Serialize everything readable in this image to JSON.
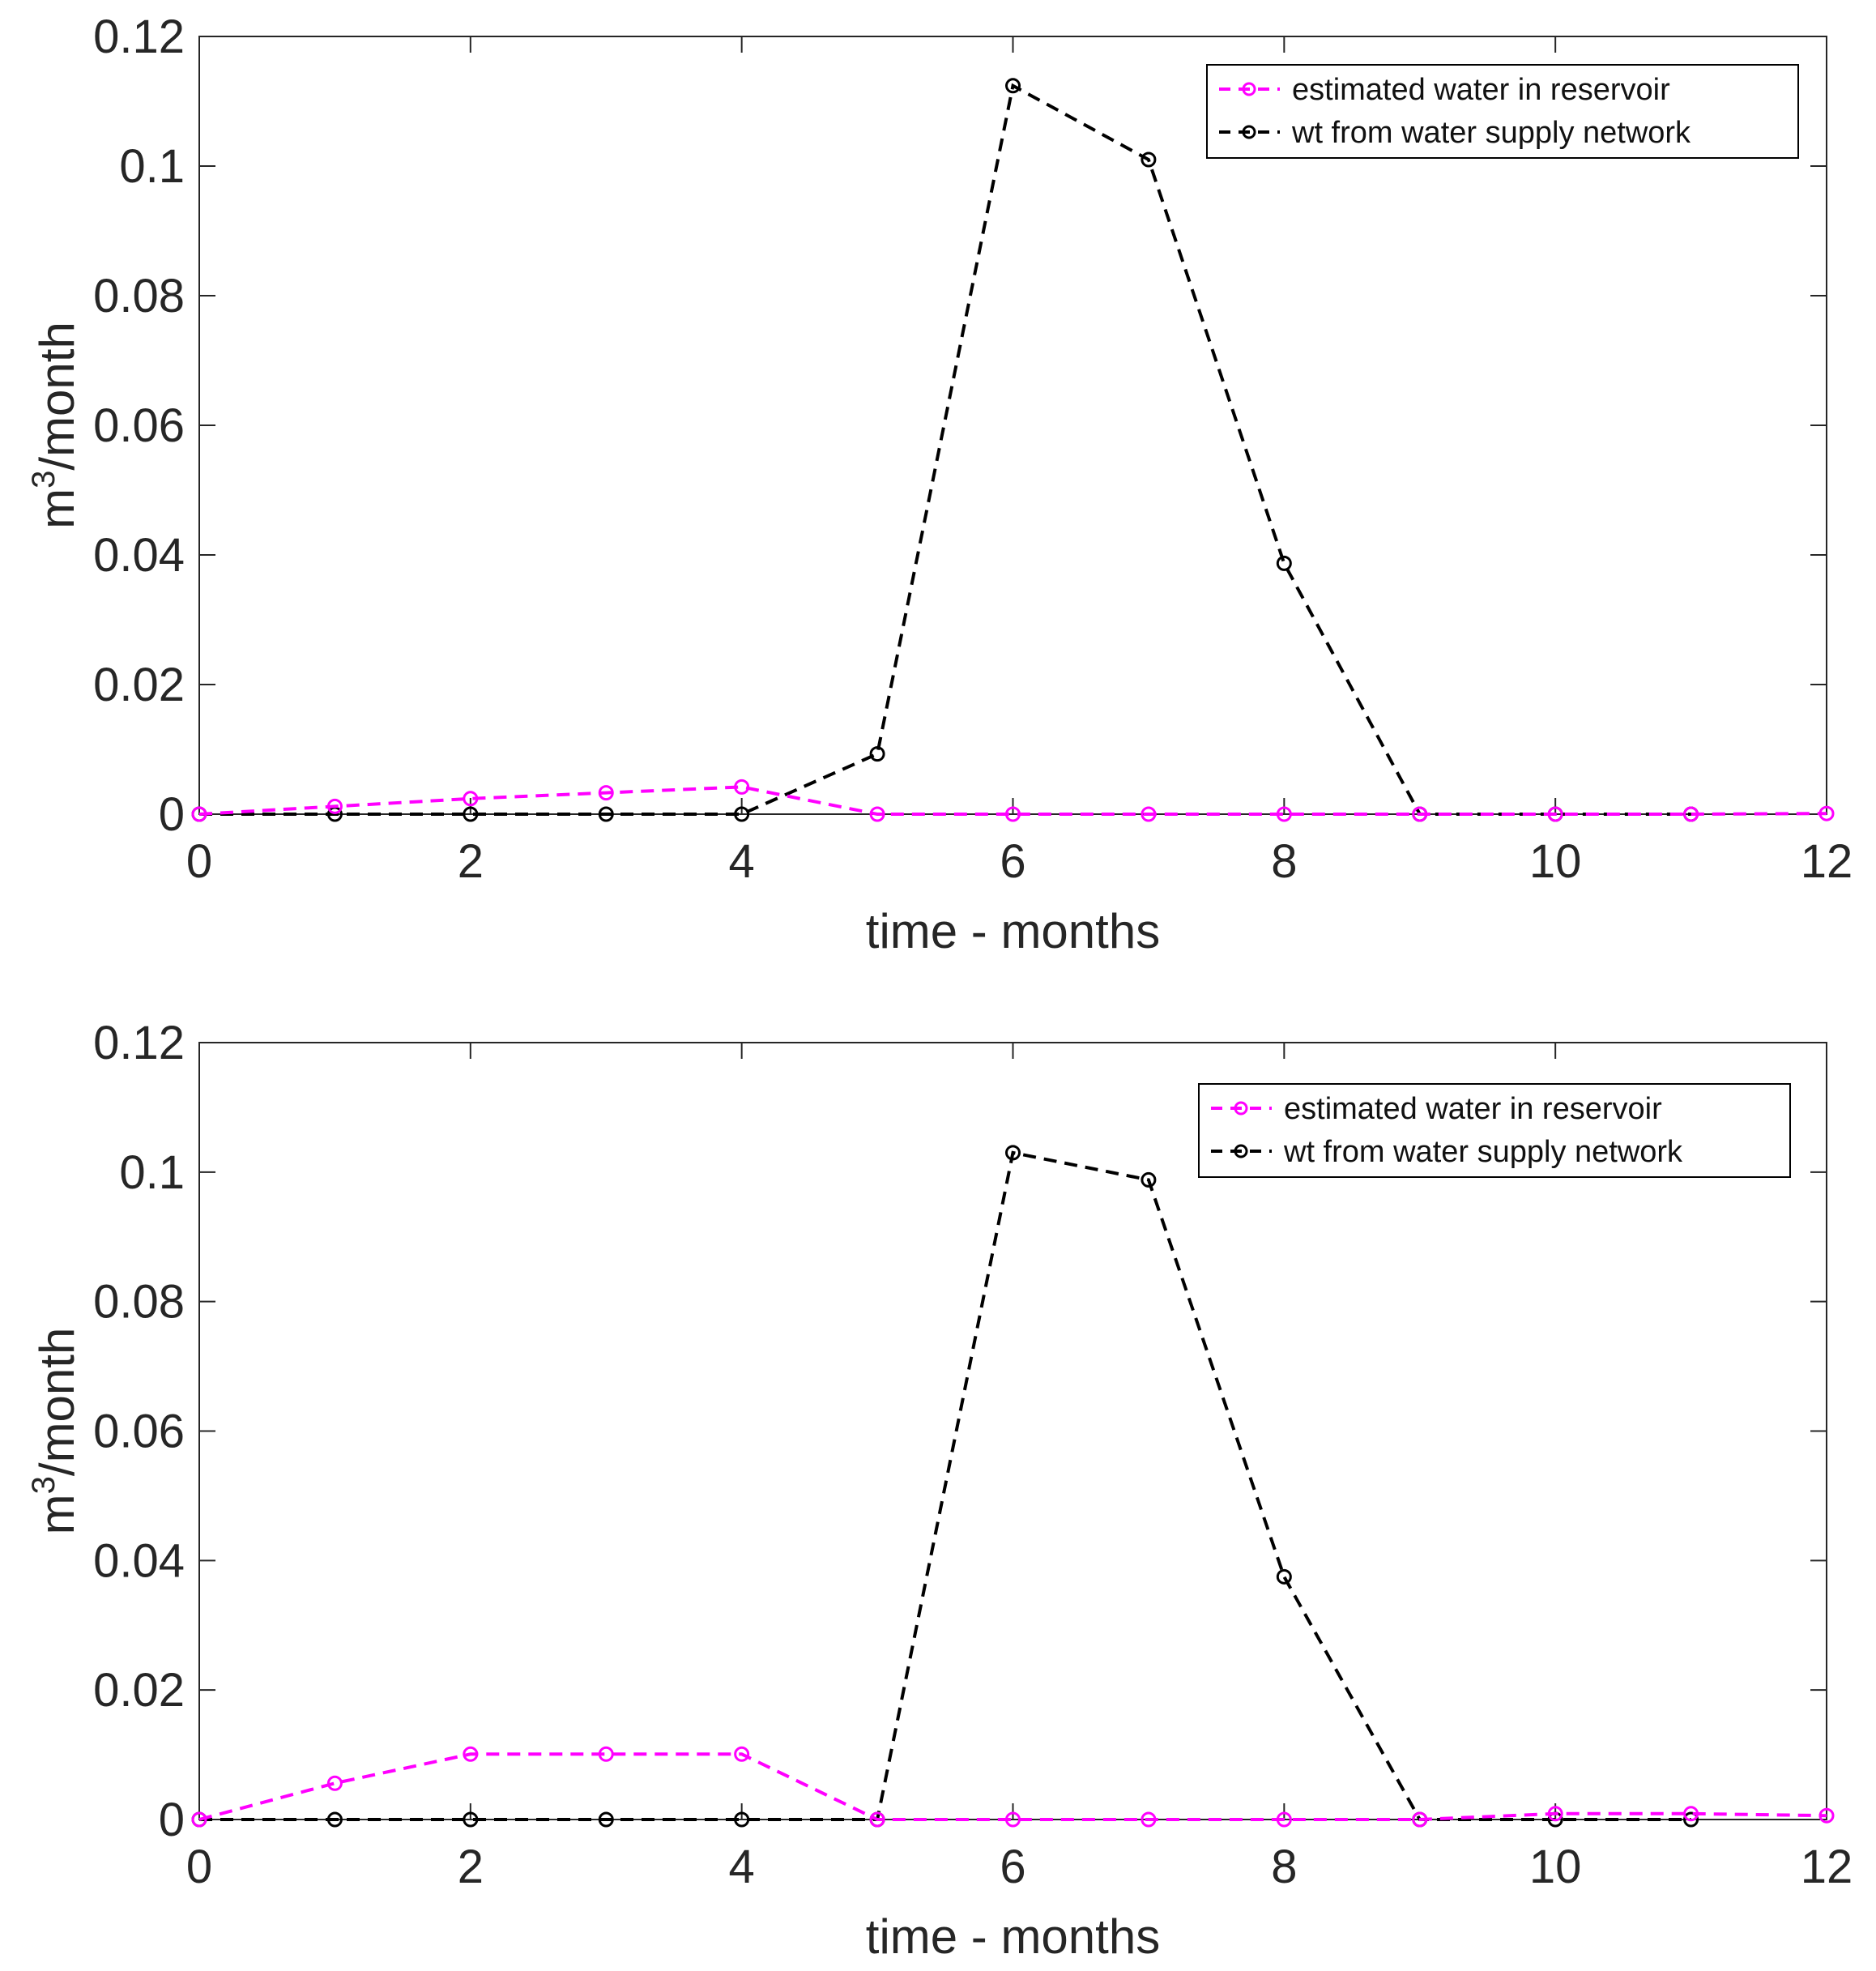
{
  "chart_data": [
    {
      "type": "line",
      "title": "",
      "xlabel": "time - months",
      "ylabel_base": "m",
      "ylabel_sup": "3",
      "ylabel_tail": "/month",
      "xlim": [
        0,
        12
      ],
      "ylim": [
        0,
        0.12
      ],
      "xticks": [
        0,
        2,
        4,
        6,
        8,
        10,
        12
      ],
      "yticks": [
        0,
        0.02,
        0.04,
        0.06,
        0.08,
        0.1,
        0.12
      ],
      "xtick_labels": [
        "0",
        "2",
        "4",
        "6",
        "8",
        "10",
        "12"
      ],
      "ytick_labels": [
        "0",
        "0.02",
        "0.04",
        "0.06",
        "0.08",
        "0.1",
        "0.12"
      ],
      "grid": false,
      "legend_position": "top-right",
      "series": [
        {
          "name": "estimated water in reservoir",
          "color": "#ff00ff",
          "style": "dashed",
          "marker": "circle",
          "x": [
            0,
            1,
            2,
            3,
            4,
            5,
            6,
            7,
            8,
            9,
            10,
            11,
            12
          ],
          "values": [
            0,
            0.0012,
            0.0024,
            0.0033,
            0.0042,
            0,
            0,
            0,
            0,
            0,
            0,
            0,
            0.0001
          ]
        },
        {
          "name": "wt from water supply network",
          "color": "#000000",
          "style": "dashed",
          "marker": "circle",
          "x": [
            0,
            1,
            2,
            3,
            4,
            5,
            6,
            7,
            8,
            9,
            10,
            11
          ],
          "values": [
            0,
            0,
            0,
            0,
            0,
            0.0093,
            0.1124,
            0.101,
            0.0387,
            0,
            0,
            0
          ]
        }
      ]
    },
    {
      "type": "line",
      "title": "",
      "xlabel": "time - months",
      "ylabel_base": "m",
      "ylabel_sup": "3",
      "ylabel_tail": "/month",
      "xlim": [
        0,
        12
      ],
      "ylim": [
        0,
        0.12
      ],
      "xticks": [
        0,
        2,
        4,
        6,
        8,
        10,
        12
      ],
      "yticks": [
        0,
        0.02,
        0.04,
        0.06,
        0.08,
        0.1,
        0.12
      ],
      "xtick_labels": [
        "0",
        "2",
        "4",
        "6",
        "8",
        "10",
        "12"
      ],
      "ytick_labels": [
        "0",
        "0.02",
        "0.04",
        "0.06",
        "0.08",
        "0.1",
        "0.12"
      ],
      "grid": false,
      "legend_position": "top-right",
      "series": [
        {
          "name": "estimated water in reservoir",
          "color": "#ff00ff",
          "style": "dashed",
          "marker": "circle",
          "x": [
            0,
            1,
            2,
            3,
            4,
            5,
            6,
            7,
            8,
            9,
            10,
            11,
            12
          ],
          "values": [
            0,
            0.0056,
            0.0101,
            0.0101,
            0.0101,
            0,
            0,
            0,
            0,
            0,
            0.0009,
            0.0009,
            0.0006
          ]
        },
        {
          "name": "wt from water supply network",
          "color": "#000000",
          "style": "dashed",
          "marker": "circle",
          "x": [
            0,
            1,
            2,
            3,
            4,
            5,
            6,
            7,
            8,
            9,
            10,
            11
          ],
          "values": [
            0,
            0,
            0,
            0,
            0,
            0,
            0.103,
            0.0988,
            0.0375,
            0,
            0,
            0
          ]
        }
      ]
    }
  ]
}
